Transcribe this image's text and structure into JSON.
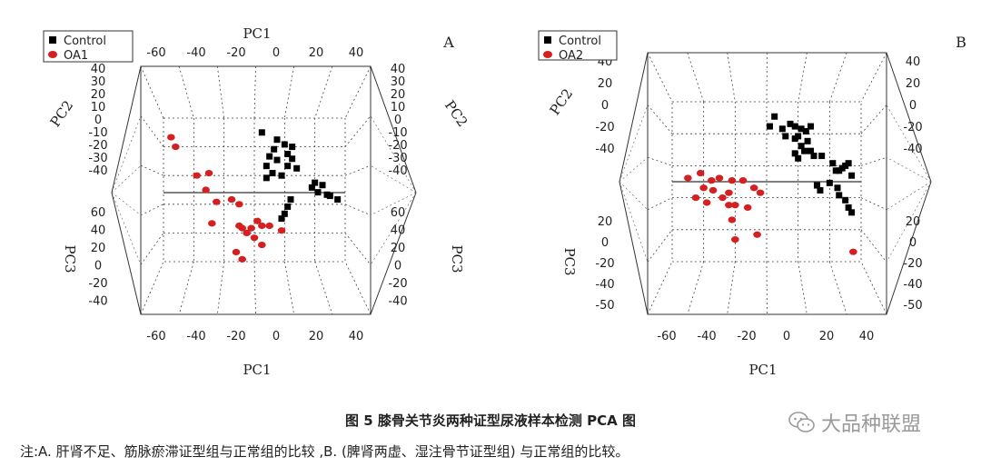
{
  "chart_data": [
    {
      "type": "scatter",
      "panel_label": "A",
      "legend": [
        {
          "name": "Control",
          "color": "#000000",
          "shape": "square"
        },
        {
          "name": "OA1",
          "color": "#d42020",
          "shape": "circle"
        }
      ],
      "axes": {
        "top_label": "PC1",
        "bottom_label": "PC1",
        "left_upper_label": "PC2",
        "right_label": "PC2",
        "left_lower_label": "PC3",
        "right_lower_label": "PC3",
        "pc1_ticks": [
          "-60",
          "-40",
          "-20",
          "0",
          "20",
          "40"
        ],
        "pc2_ticks": [
          "40",
          "30",
          "20",
          "10",
          "0",
          "-10",
          "-20",
          "-30",
          "-40"
        ],
        "pc3_ticks": [
          "60",
          "40",
          "20",
          "0",
          "-20",
          "-40"
        ]
      },
      "series": [
        {
          "name": "Control",
          "points": [
            [
              -5,
              -2
            ],
            [
              5,
              -8
            ],
            [
              10,
              -12
            ],
            [
              15,
              -14
            ],
            [
              3,
              -16
            ],
            [
              12,
              -20
            ],
            [
              0,
              -22
            ],
            [
              15,
              -24
            ],
            [
              5,
              -25
            ],
            [
              -2,
              -30
            ],
            [
              12,
              -30
            ],
            [
              18,
              -32
            ],
            [
              2,
              -36
            ],
            [
              -2,
              -40
            ],
            [
              8,
              -38
            ],
            [
              30,
              -44
            ],
            [
              35,
              -46
            ],
            [
              28,
              -48
            ],
            [
              32,
              -52
            ],
            [
              38,
              -54
            ],
            [
              40,
              -55
            ],
            [
              45,
              -58
            ],
            [
              14,
              -58
            ],
            [
              12,
              -64
            ],
            [
              10,
              -70
            ],
            [
              8,
              -74
            ]
          ]
        },
        {
          "name": "OA1",
          "points": [
            [
              -62,
              -14
            ],
            [
              -65,
              -6
            ],
            [
              -48,
              -38
            ],
            [
              -40,
              -36
            ],
            [
              -42,
              -50
            ],
            [
              -35,
              -60
            ],
            [
              -25,
              -58
            ],
            [
              -20,
              -62
            ],
            [
              -38,
              -78
            ],
            [
              -20,
              -80
            ],
            [
              -8,
              -76
            ],
            [
              -5,
              -80
            ],
            [
              -12,
              -82
            ],
            [
              -15,
              -86
            ],
            [
              -18,
              -82
            ],
            [
              -10,
              -90
            ],
            [
              0,
              -80
            ],
            [
              8,
              -84
            ],
            [
              -5,
              -96
            ],
            [
              -22,
              -102
            ],
            [
              -18,
              -108
            ]
          ]
        }
      ]
    },
    {
      "type": "scatter",
      "panel_label": "B",
      "legend": [
        {
          "name": "Control",
          "color": "#000000",
          "shape": "square"
        },
        {
          "name": "OA2",
          "color": "#d42020",
          "shape": "circle"
        }
      ],
      "axes": {
        "top_label": "",
        "bottom_label": "PC1",
        "left_upper_label": "PC2",
        "right_label": "",
        "left_lower_label": "PC3",
        "right_lower_label": "",
        "pc1_ticks": [
          "-60",
          "-40",
          "-20",
          "0",
          "20",
          "40"
        ],
        "pc2_ticks": [
          "40",
          "20",
          "0",
          "-20",
          "-40"
        ],
        "pc3_ticks": [
          "20",
          "0",
          "-20",
          "-40",
          "-50"
        ]
      },
      "series": [
        {
          "name": "Control",
          "points": [
            [
              -5,
              38
            ],
            [
              -8,
              30
            ],
            [
              0,
              28
            ],
            [
              5,
              32
            ],
            [
              8,
              30
            ],
            [
              12,
              28
            ],
            [
              15,
              26
            ],
            [
              18,
              30
            ],
            [
              2,
              22
            ],
            [
              8,
              20
            ],
            [
              10,
              22
            ],
            [
              16,
              18
            ],
            [
              12,
              14
            ],
            [
              14,
              10
            ],
            [
              8,
              8
            ],
            [
              18,
              10
            ],
            [
              20,
              6
            ],
            [
              25,
              6
            ],
            [
              10,
              4
            ],
            [
              32,
              0
            ],
            [
              34,
              -6
            ],
            [
              36,
              -6
            ],
            [
              38,
              -4
            ],
            [
              40,
              -2
            ],
            [
              42,
              0
            ],
            [
              44,
              -10
            ],
            [
              22,
              -18
            ],
            [
              24,
              -22
            ],
            [
              30,
              -16
            ],
            [
              35,
              -20
            ],
            [
              36,
              -26
            ],
            [
              40,
              -30
            ],
            [
              42,
              -36
            ],
            [
              44,
              -40
            ]
          ]
        },
        {
          "name": "OA2",
          "points": [
            [
              -52,
              -8
            ],
            [
              -60,
              -12
            ],
            [
              -45,
              -14
            ],
            [
              -40,
              -12
            ],
            [
              -32,
              -14
            ],
            [
              -25,
              -14
            ],
            [
              -50,
              -20
            ],
            [
              -44,
              -22
            ],
            [
              -34,
              -24
            ],
            [
              -18,
              -20
            ],
            [
              -38,
              -28
            ],
            [
              -14,
              -24
            ],
            [
              -55,
              -28
            ],
            [
              -48,
              -32
            ],
            [
              -34,
              -34
            ],
            [
              -30,
              -34
            ],
            [
              -22,
              -36
            ],
            [
              -32,
              -46
            ],
            [
              -16,
              -58
            ],
            [
              -30,
              -62
            ],
            [
              45,
              -72
            ]
          ]
        }
      ]
    }
  ],
  "caption": "图 5    膝骨关节炎两种证型尿液样本检测 PCA 图",
  "note": "注:A. 肝肾不足、筋脉瘀滞证型组与正常组的比较 ,B. (脾肾两虚、湿注骨节证型组) 与正常组的比较。",
  "watermark": "大品种联盟",
  "watermark_icon": "wechat-icon"
}
